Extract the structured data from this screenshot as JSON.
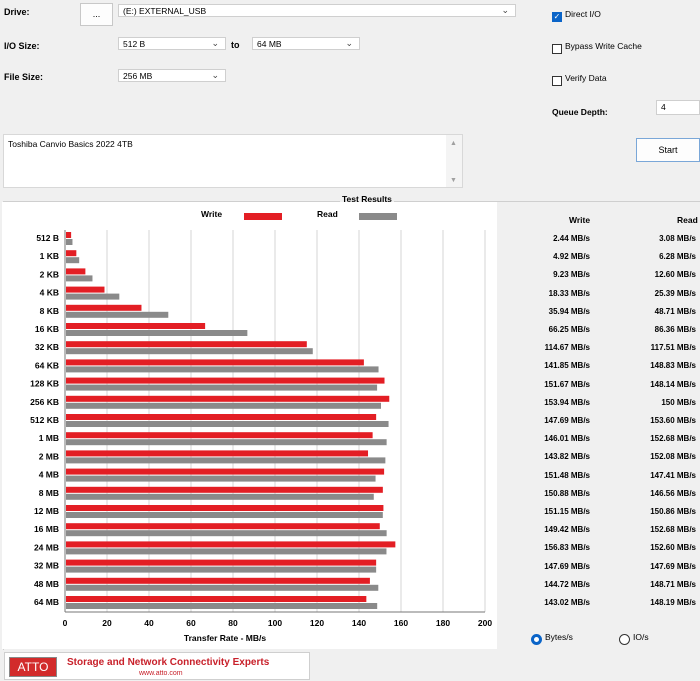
{
  "form": {
    "drive_label": "Drive:",
    "browse_label": "...",
    "drive_value": "(E:) EXTERNAL_USB",
    "io_size_label": "I/O Size:",
    "io_from": "512 B",
    "to_label": "to",
    "io_to": "64 MB",
    "file_size_label": "File Size:",
    "file_size": "256 MB",
    "direct_io": "Direct I/O",
    "bypass_cache": "Bypass Write Cache",
    "verify_data": "Verify Data",
    "queue_depth_label": "Queue Depth:",
    "queue_depth": "4",
    "start_label": "Start",
    "description": "Toshiba Canvio Basics 2022 4TB"
  },
  "results": {
    "title": "Test Results",
    "write_header": "Write",
    "read_header": "Read",
    "rows": [
      {
        "write": "2.44 MB/s",
        "read": "3.08 MB/s"
      },
      {
        "write": "4.92 MB/s",
        "read": "6.28 MB/s"
      },
      {
        "write": "9.23 MB/s",
        "read": "12.60 MB/s"
      },
      {
        "write": "18.33 MB/s",
        "read": "25.39 MB/s"
      },
      {
        "write": "35.94 MB/s",
        "read": "48.71 MB/s"
      },
      {
        "write": "66.25 MB/s",
        "read": "86.36 MB/s"
      },
      {
        "write": "114.67 MB/s",
        "read": "117.51 MB/s"
      },
      {
        "write": "141.85 MB/s",
        "read": "148.83 MB/s"
      },
      {
        "write": "151.67 MB/s",
        "read": "148.14 MB/s"
      },
      {
        "write": "153.94 MB/s",
        "read": "150 MB/s"
      },
      {
        "write": "147.69 MB/s",
        "read": "153.60 MB/s"
      },
      {
        "write": "146.01 MB/s",
        "read": "152.68 MB/s"
      },
      {
        "write": "143.82 MB/s",
        "read": "152.08 MB/s"
      },
      {
        "write": "151.48 MB/s",
        "read": "147.41 MB/s"
      },
      {
        "write": "150.88 MB/s",
        "read": "146.56 MB/s"
      },
      {
        "write": "151.15 MB/s",
        "read": "150.86 MB/s"
      },
      {
        "write": "149.42 MB/s",
        "read": "152.68 MB/s"
      },
      {
        "write": "156.83 MB/s",
        "read": "152.60 MB/s"
      },
      {
        "write": "147.69 MB/s",
        "read": "147.69 MB/s"
      },
      {
        "write": "144.72 MB/s",
        "read": "148.71 MB/s"
      },
      {
        "write": "143.02 MB/s",
        "read": "148.19 MB/s"
      }
    ],
    "bytes_label": "Bytes/s",
    "io_label": "IO/s"
  },
  "banner": {
    "logo": "ATTO",
    "tagline": "Storage and Network Connectivity Experts",
    "url": "www.atto.com"
  },
  "colors": {
    "write": "#e31e24",
    "read": "#8a8a8a",
    "accent": "#0a64c8"
  },
  "chart_data": {
    "type": "bar",
    "orientation": "horizontal",
    "categories": [
      "512 B",
      "1 KB",
      "2 KB",
      "4 KB",
      "8 KB",
      "16 KB",
      "32 KB",
      "64 KB",
      "128 KB",
      "256 KB",
      "512 KB",
      "1 MB",
      "2 MB",
      "4 MB",
      "8 MB",
      "12 MB",
      "16 MB",
      "24 MB",
      "32 MB",
      "48 MB",
      "64 MB"
    ],
    "series": [
      {
        "name": "Write",
        "values": [
          2.44,
          4.92,
          9.23,
          18.33,
          35.94,
          66.25,
          114.67,
          141.85,
          151.67,
          153.94,
          147.69,
          146.01,
          143.82,
          151.48,
          150.88,
          151.15,
          149.42,
          156.83,
          147.69,
          144.72,
          143.02
        ]
      },
      {
        "name": "Read",
        "values": [
          3.08,
          6.28,
          12.6,
          25.39,
          48.71,
          86.36,
          117.51,
          148.83,
          148.14,
          150,
          153.6,
          152.68,
          152.08,
          147.41,
          146.56,
          150.86,
          152.68,
          152.6,
          147.69,
          148.71,
          148.19
        ]
      }
    ],
    "xlabel": "Transfer Rate - MB/s",
    "ylabel": "",
    "xlim": [
      0,
      200
    ],
    "xticks": [
      0,
      20,
      40,
      60,
      80,
      100,
      120,
      140,
      160,
      180,
      200
    ],
    "grid": true,
    "legend": "top"
  }
}
